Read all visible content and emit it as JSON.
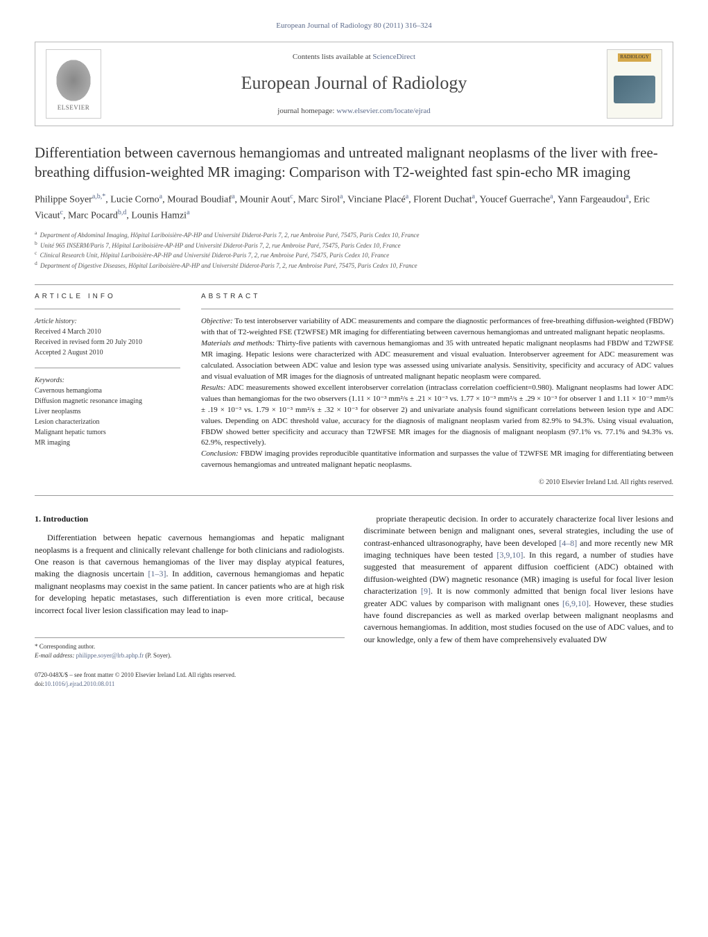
{
  "header": {
    "citation": "European Journal of Radiology 80 (2011) 316–324"
  },
  "banner": {
    "contents_prefix": "Contents lists available at ",
    "contents_link": "ScienceDirect",
    "journal_name": "European Journal of Radiology",
    "homepage_prefix": "journal homepage: ",
    "homepage_link": "www.elsevier.com/locate/ejrad",
    "publisher": "ELSEVIER",
    "cover_label": "RADIOLOGY"
  },
  "title": "Differentiation between cavernous hemangiomas and untreated malignant neoplasms of the liver with free-breathing diffusion-weighted MR imaging: Comparison with T2-weighted fast spin-echo MR imaging",
  "authors_html": "Philippe Soyer<sup>a,b,*</sup>, Lucie Corno<sup>a</sup>, Mourad Boudiaf<sup>a</sup>, Mounir Aout<sup>c</sup>, Marc Sirol<sup>a</sup>, Vinciane Placé<sup>a</sup>, Florent Duchat<sup>a</sup>, Youcef Guerrache<sup>a</sup>, Yann Fargeaudou<sup>a</sup>, Eric Vicaut<sup>c</sup>, Marc Pocard<sup>b,d</sup>, Lounis Hamzi<sup>a</sup>",
  "affiliations": [
    {
      "sup": "a",
      "text": "Department of Abdominal Imaging, Hôpital Lariboisière-AP-HP and Université Diderot-Paris 7, 2, rue Ambroise Paré, 75475, Paris Cedex 10, France"
    },
    {
      "sup": "b",
      "text": "Unité 965 INSERM/Paris 7, Hôpital Lariboisière-AP-HP and Université Diderot-Paris 7, 2, rue Ambroise Paré, 75475, Paris Cedex 10, France"
    },
    {
      "sup": "c",
      "text": "Clinical Research Unit, Hôpital Lariboisière-AP-HP and Université Diderot-Paris 7, 2, rue Ambroise Paré, 75475, Paris Cedex 10, France"
    },
    {
      "sup": "d",
      "text": "Department of Digestive Diseases, Hôpital Lariboisière-AP-HP and Université Diderot-Paris 7, 2, rue Ambroise Paré, 75475, Paris Cedex 10, France"
    }
  ],
  "article_info": {
    "heading": "article info",
    "history_label": "Article history:",
    "history": [
      "Received 4 March 2010",
      "Received in revised form 20 July 2010",
      "Accepted 2 August 2010"
    ],
    "keywords_label": "Keywords:",
    "keywords": [
      "Cavernous hemangioma",
      "Diffusion magnetic resonance imaging",
      "Liver neoplasms",
      "Lesion characterization",
      "Malignant hepatic tumors",
      "MR imaging"
    ]
  },
  "abstract": {
    "heading": "abstract",
    "objective_label": "Objective:",
    "objective": "To test interobserver variability of ADC measurements and compare the diagnostic performances of free-breathing diffusion-weighted (FBDW) with that of T2-weighted FSE (T2WFSE) MR imaging for differentiating between cavernous hemangiomas and untreated malignant hepatic neoplasms.",
    "materials_label": "Materials and methods:",
    "materials": "Thirty-five patients with cavernous hemangiomas and 35 with untreated hepatic malignant neoplasms had FBDW and T2WFSE MR imaging. Hepatic lesions were characterized with ADC measurement and visual evaluation. Interobserver agreement for ADC measurement was calculated. Association between ADC value and lesion type was assessed using univariate analysis. Sensitivity, specificity and accuracy of ADC values and visual evaluation of MR images for the diagnosis of untreated malignant hepatic neoplasm were compared.",
    "results_label": "Results:",
    "results": "ADC measurements showed excellent interobserver correlation (intraclass correlation coefficient=0.980). Malignant neoplasms had lower ADC values than hemangiomas for the two observers (1.11 × 10⁻³ mm²/s ± .21 × 10⁻³ vs. 1.77 × 10⁻³ mm²/s ± .29 × 10⁻³ for observer 1 and 1.11 × 10⁻³ mm²/s ± .19 × 10⁻³ vs. 1.79 × 10⁻³ mm²/s ± .32 × 10⁻³ for observer 2) and univariate analysis found significant correlations between lesion type and ADC values. Depending on ADC threshold value, accuracy for the diagnosis of malignant neoplasm varied from 82.9% to 94.3%. Using visual evaluation, FBDW showed better specificity and accuracy than T2WFSE MR images for the diagnosis of malignant neoplasm (97.1% vs. 77.1% and 94.3% vs. 62.9%, respectively).",
    "conclusion_label": "Conclusion:",
    "conclusion": "FBDW imaging provides reproducible quantitative information and surpasses the value of T2WFSE MR imaging for differentiating between cavernous hemangiomas and untreated malignant hepatic neoplasms.",
    "copyright": "© 2010 Elsevier Ireland Ltd. All rights reserved."
  },
  "body": {
    "section_number": "1.",
    "section_title": "Introduction",
    "left_col": "Differentiation between hepatic cavernous hemangiomas and hepatic malignant neoplasms is a frequent and clinically relevant challenge for both clinicians and radiologists. One reason is that cavernous hemangiomas of the liver may display atypical features, making the diagnosis uncertain [1–3]. In addition, cavernous hemangiomas and hepatic malignant neoplasms may coexist in the same patient. In cancer patients who are at high risk for developing hepatic metastases, such differentiation is even more critical, because incorrect focal liver lesion classification may lead to inap-",
    "right_col": "propriate therapeutic decision. In order to accurately characterize focal liver lesions and discriminate between benign and malignant ones, several strategies, including the use of contrast-enhanced ultrasonography, have been developed [4–8] and more recently new MR imaging techniques have been tested [3,9,10]. In this regard, a number of studies have suggested that measurement of apparent diffusion coefficient (ADC) obtained with diffusion-weighted (DW) magnetic resonance (MR) imaging is useful for focal liver lesion characterization [9]. It is now commonly admitted that benign focal liver lesions have greater ADC values by comparison with malignant ones [6,9,10]. However, these studies have found discrepancies as well as marked overlap between malignant neoplasms and cavernous hemangiomas. In addition, most studies focused on the use of ADC values, and to our knowledge, only a few of them have comprehensively evaluated DW"
  },
  "footnote": {
    "corr_label": "* Corresponding author.",
    "email_label": "E-mail address:",
    "email": "philippe.soyer@lrb.aphp.fr",
    "email_suffix": "(P. Soyer)."
  },
  "footer": {
    "line1": "0720-048X/$ – see front matter © 2010 Elsevier Ireland Ltd. All rights reserved.",
    "doi_label": "doi:",
    "doi": "10.1016/j.ejrad.2010.08.011"
  },
  "refs": {
    "r13": "[1–3]",
    "r48": "[4–8]",
    "r3910": "[3,9,10]",
    "r9": "[9]",
    "r6910": "[6,9,10]"
  }
}
